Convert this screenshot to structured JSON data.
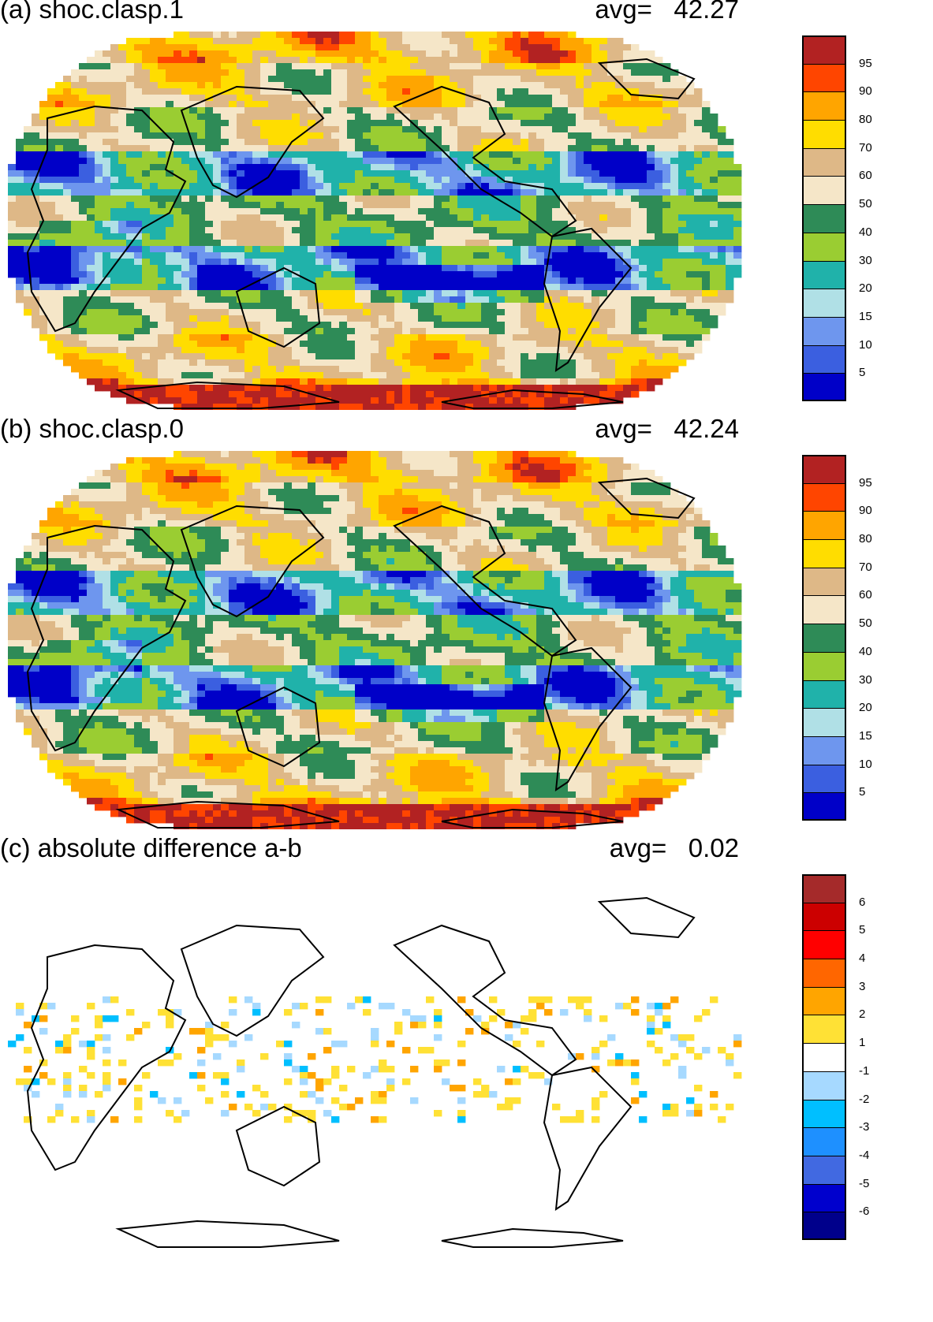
{
  "panels": [
    {
      "title": "(a) shoc.clasp.1",
      "avg_label": "avg=",
      "avg_value": "42.27",
      "type": "field",
      "colorbar": {
        "colors": [
          "#0000c8",
          "#3b5fe0",
          "#6e96ee",
          "#b0e0e6",
          "#20b2aa",
          "#9acd32",
          "#2e8b57",
          "#f5e6c8",
          "#deb887",
          "#ffdd00",
          "#ffa500",
          "#ff4500",
          "#b22222"
        ],
        "labels": [
          "5",
          "10",
          "15",
          "20",
          "30",
          "40",
          "50",
          "60",
          "70",
          "80",
          "90",
          "95"
        ]
      }
    },
    {
      "title": "(b) shoc.clasp.0",
      "avg_label": "avg=",
      "avg_value": "42.24",
      "type": "field",
      "colorbar": {
        "colors": [
          "#0000c8",
          "#3b5fe0",
          "#6e96ee",
          "#b0e0e6",
          "#20b2aa",
          "#9acd32",
          "#2e8b57",
          "#f5e6c8",
          "#deb887",
          "#ffdd00",
          "#ffa500",
          "#ff4500",
          "#b22222"
        ],
        "labels": [
          "5",
          "10",
          "15",
          "20",
          "30",
          "40",
          "50",
          "60",
          "70",
          "80",
          "90",
          "95"
        ]
      }
    },
    {
      "title": "(c) absolute difference a-b",
      "avg_label": "avg=",
      "avg_value": "0.02",
      "type": "diff",
      "colorbar": {
        "colors": [
          "#00008b",
          "#0000cd",
          "#4169e1",
          "#1e90ff",
          "#00bfff",
          "#a6d9ff",
          "#ffffff",
          "#ffe135",
          "#ffa500",
          "#ff6600",
          "#ff0000",
          "#cc0000",
          "#a52a2a"
        ],
        "labels": [
          "-6",
          "-5",
          "-4",
          "-3",
          "-2",
          "-1",
          "1",
          "2",
          "3",
          "4",
          "5",
          "6"
        ]
      }
    }
  ]
}
